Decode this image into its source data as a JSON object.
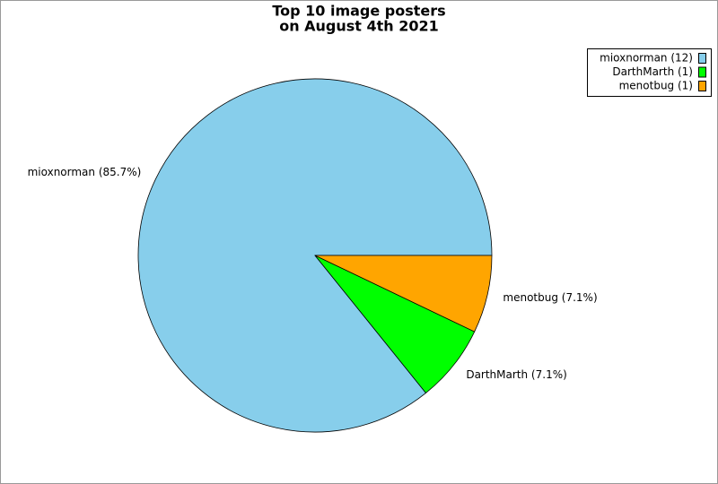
{
  "chart_data": {
    "type": "pie",
    "title": [
      "Top 10 image posters",
      "on August 4th 2021"
    ],
    "categories": [
      "mioxnorman",
      "DarthMarth",
      "menotbug"
    ],
    "values": [
      85.7,
      7.1,
      7.1
    ],
    "value_labels": [
      "mioxnorman (85.7%)",
      "DarthMarth (7.1%)",
      "menotbug (7.1%)"
    ],
    "legend_labels": [
      "mioxnorman (12)",
      "DarthMarth (1)",
      "menotbug (1)"
    ],
    "colors": [
      "#87ceeb",
      "#00ff00",
      "#ffa500"
    ],
    "legend": "upper right"
  }
}
